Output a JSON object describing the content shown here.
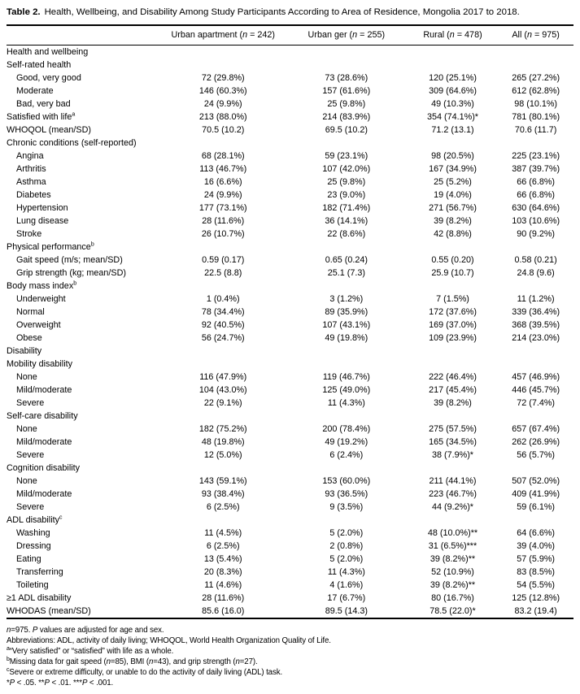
{
  "title": {
    "label": "Table 2.",
    "text": "Health, Wellbeing, and Disability Among Study Participants According to Area of Residence, Mongolia 2017 to 2018."
  },
  "table": {
    "columns": [
      {
        "segments": [
          {
            "t": "Urban apartment (",
            "i": 0
          },
          {
            "t": "n",
            "i": 1
          },
          {
            "t": " = 242)",
            "i": 0
          }
        ]
      },
      {
        "segments": [
          {
            "t": "Urban ger (",
            "i": 0
          },
          {
            "t": "n",
            "i": 1
          },
          {
            "t": " = 255)",
            "i": 0
          }
        ]
      },
      {
        "segments": [
          {
            "t": "Rural (",
            "i": 0
          },
          {
            "t": "n",
            "i": 1
          },
          {
            "t": " = 478)",
            "i": 0
          }
        ]
      },
      {
        "segments": [
          {
            "t": "All (",
            "i": 0
          },
          {
            "t": "n",
            "i": 1
          },
          {
            "t": " = 975)",
            "i": 0
          }
        ]
      }
    ],
    "rows": [
      {
        "label": "Health and wellbeing",
        "indent": 0,
        "values": []
      },
      {
        "label": "Self-rated health",
        "indent": 0,
        "values": []
      },
      {
        "label": "Good, very good",
        "indent": 1,
        "values": [
          "72 (29.8%)",
          "73 (28.6%)",
          "120 (25.1%)",
          "265 (27.2%)"
        ]
      },
      {
        "label": "Moderate",
        "indent": 1,
        "values": [
          "146 (60.3%)",
          "157 (61.6%)",
          "309 (64.6%)",
          "612 (62.8%)"
        ]
      },
      {
        "label": "Bad, very bad",
        "indent": 1,
        "values": [
          "24 (9.9%)",
          "25 (9.8%)",
          "49 (10.3%)",
          "98 (10.1%)"
        ]
      },
      {
        "label": "Satisfied with life",
        "sup": "a",
        "indent": 0,
        "values": [
          "213 (88.0%)",
          "214 (83.9%)",
          "354 (74.1%)*",
          "781 (80.1%)"
        ]
      },
      {
        "label": "WHOQOL (mean/SD)",
        "indent": 0,
        "values": [
          "70.5 (10.2)",
          "69.5 (10.2)",
          "71.2 (13.1)",
          "70.6 (11.7)"
        ]
      },
      {
        "label": "Chronic conditions (self-reported)",
        "indent": 0,
        "values": []
      },
      {
        "label": "Angina",
        "indent": 1,
        "values": [
          "68 (28.1%)",
          "59 (23.1%)",
          "98 (20.5%)",
          "225 (23.1%)"
        ]
      },
      {
        "label": "Arthritis",
        "indent": 1,
        "values": [
          "113 (46.7%)",
          "107 (42.0%)",
          "167 (34.9%)",
          "387 (39.7%)"
        ]
      },
      {
        "label": "Asthma",
        "indent": 1,
        "values": [
          "16 (6.6%)",
          "25 (9.8%)",
          "25 (5.2%)",
          "66 (6.8%)"
        ]
      },
      {
        "label": "Diabetes",
        "indent": 1,
        "values": [
          "24 (9.9%)",
          "23 (9.0%)",
          "19 (4.0%)",
          "66 (6.8%)"
        ]
      },
      {
        "label": "Hypertension",
        "indent": 1,
        "values": [
          "177 (73.1%)",
          "182 (71.4%)",
          "271 (56.7%)",
          "630 (64.6%)"
        ]
      },
      {
        "label": "Lung disease",
        "indent": 1,
        "values": [
          "28 (11.6%)",
          "36 (14.1%)",
          "39 (8.2%)",
          "103 (10.6%)"
        ]
      },
      {
        "label": "Stroke",
        "indent": 1,
        "values": [
          "26 (10.7%)",
          "22 (8.6%)",
          "42 (8.8%)",
          "90 (9.2%)"
        ]
      },
      {
        "label": "Physical performance",
        "sup": "b",
        "indent": 0,
        "values": []
      },
      {
        "label": "Gait speed (m/s; mean/SD)",
        "indent": 1,
        "values": [
          "0.59 (0.17)",
          "0.65 (0.24)",
          "0.55 (0.20)",
          "0.58 (0.21)"
        ]
      },
      {
        "label": "Grip strength (kg; mean/SD)",
        "indent": 1,
        "values": [
          "22.5 (8.8)",
          "25.1 (7.3)",
          "25.9 (10.7)",
          "24.8 (9.6)"
        ]
      },
      {
        "label": "Body mass index",
        "sup": "b",
        "indent": 0,
        "values": []
      },
      {
        "label": "Underweight",
        "indent": 1,
        "values": [
          "1 (0.4%)",
          "3 (1.2%)",
          "7 (1.5%)",
          "11 (1.2%)"
        ]
      },
      {
        "label": "Normal",
        "indent": 1,
        "values": [
          "78 (34.4%)",
          "89 (35.9%)",
          "172 (37.6%)",
          "339 (36.4%)"
        ]
      },
      {
        "label": "Overweight",
        "indent": 1,
        "values": [
          "92 (40.5%)",
          "107 (43.1%)",
          "169 (37.0%)",
          "368 (39.5%)"
        ]
      },
      {
        "label": "Obese",
        "indent": 1,
        "values": [
          "56 (24.7%)",
          "49 (19.8%)",
          "109 (23.9%)",
          "214 (23.0%)"
        ]
      },
      {
        "label": "Disability",
        "indent": 0,
        "values": []
      },
      {
        "label": "Mobility disability",
        "indent": 0,
        "values": []
      },
      {
        "label": "None",
        "indent": 1,
        "values": [
          "116 (47.9%)",
          "119 (46.7%)",
          "222 (46.4%)",
          "457 (46.9%)"
        ]
      },
      {
        "label": "Mild/moderate",
        "indent": 1,
        "values": [
          "104 (43.0%)",
          "125 (49.0%)",
          "217 (45.4%)",
          "446 (45.7%)"
        ]
      },
      {
        "label": "Severe",
        "indent": 1,
        "values": [
          "22 (9.1%)",
          "11 (4.3%)",
          "39 (8.2%)",
          "72 (7.4%)"
        ]
      },
      {
        "label": "Self-care disability",
        "indent": 0,
        "values": []
      },
      {
        "label": "None",
        "indent": 1,
        "values": [
          "182 (75.2%)",
          "200 (78.4%)",
          "275 (57.5%)",
          "657 (67.4%)"
        ]
      },
      {
        "label": "Mild/moderate",
        "indent": 1,
        "values": [
          "48 (19.8%)",
          "49 (19.2%)",
          "165 (34.5%)",
          "262 (26.9%)"
        ]
      },
      {
        "label": "Severe",
        "indent": 1,
        "values": [
          "12 (5.0%)",
          "6 (2.4%)",
          "38 (7.9%)*",
          "56 (5.7%)"
        ]
      },
      {
        "label": "Cognition disability",
        "indent": 0,
        "values": []
      },
      {
        "label": "None",
        "indent": 1,
        "values": [
          "143 (59.1%)",
          "153 (60.0%)",
          "211 (44.1%)",
          "507 (52.0%)"
        ]
      },
      {
        "label": "Mild/moderate",
        "indent": 1,
        "values": [
          "93 (38.4%)",
          "93 (36.5%)",
          "223 (46.7%)",
          "409 (41.9%)"
        ]
      },
      {
        "label": "Severe",
        "indent": 1,
        "values": [
          "6 (2.5%)",
          "9 (3.5%)",
          "44 (9.2%)*",
          "59 (6.1%)"
        ]
      },
      {
        "label": "ADL disability",
        "sup": "c",
        "indent": 0,
        "values": []
      },
      {
        "label": "Washing",
        "indent": 1,
        "values": [
          "11 (4.5%)",
          "5 (2.0%)",
          "48 (10.0%)**",
          "64 (6.6%)"
        ]
      },
      {
        "label": "Dressing",
        "indent": 1,
        "values": [
          "6 (2.5%)",
          "2 (0.8%)",
          "31 (6.5%)***",
          "39 (4.0%)"
        ]
      },
      {
        "label": "Eating",
        "indent": 1,
        "values": [
          "13 (5.4%)",
          "5 (2.0%)",
          "39 (8.2%)**",
          "57 (5.9%)"
        ]
      },
      {
        "label": "Transferring",
        "indent": 1,
        "values": [
          "20 (8.3%)",
          "11 (4.3%)",
          "52 (10.9%)",
          "83 (8.5%)"
        ]
      },
      {
        "label": "Toileting",
        "indent": 1,
        "values": [
          "11 (4.6%)",
          "4 (1.6%)",
          "39 (8.2%)**",
          "54 (5.5%)"
        ]
      },
      {
        "label": "≥1 ADL disability",
        "indent": 0,
        "values": [
          "28 (11.6%)",
          "17 (6.7%)",
          "80 (16.7%)",
          "125 (12.8%)"
        ]
      },
      {
        "label": "WHODAS (mean/SD)",
        "indent": 0,
        "values": [
          "85.6 (16.0)",
          "89.5 (14.3)",
          "78.5 (22.0)*",
          "83.2 (19.4)"
        ]
      }
    ]
  },
  "footnotes": [
    {
      "segments": [
        {
          "t": "n",
          "i": 1
        },
        {
          "t": "=975. ",
          "i": 0
        },
        {
          "t": "P",
          "i": 1
        },
        {
          "t": " values are adjusted for age and sex.",
          "i": 0
        }
      ]
    },
    {
      "segments": [
        {
          "t": "Abbreviations: ADL, activity of daily living; WHOQOL, World Health Organization Quality of Life.",
          "i": 0
        }
      ]
    },
    {
      "sup": "a",
      "segments": [
        {
          "t": "“Very satisfied” or “satisfied” with life as a whole.",
          "i": 0
        }
      ]
    },
    {
      "sup": "b",
      "segments": [
        {
          "t": "Missing data for gait speed (",
          "i": 0
        },
        {
          "t": "n",
          "i": 1
        },
        {
          "t": "=85), BMI (",
          "i": 0
        },
        {
          "t": "n",
          "i": 1
        },
        {
          "t": "=43), and grip strength (",
          "i": 0
        },
        {
          "t": "n",
          "i": 1
        },
        {
          "t": "=27).",
          "i": 0
        }
      ]
    },
    {
      "sup": "c",
      "segments": [
        {
          "t": "Severe or extreme difficulty, or unable to do the activity of daily living (ADL) task.",
          "i": 0
        }
      ]
    },
    {
      "segments": [
        {
          "t": "*",
          "i": 0
        },
        {
          "t": "P",
          "i": 1
        },
        {
          "t": " < .05. **",
          "i": 0
        },
        {
          "t": "P",
          "i": 1
        },
        {
          "t": " < .01. ***",
          "i": 0
        },
        {
          "t": "P",
          "i": 1
        },
        {
          "t": " < .001.",
          "i": 0
        }
      ]
    }
  ]
}
